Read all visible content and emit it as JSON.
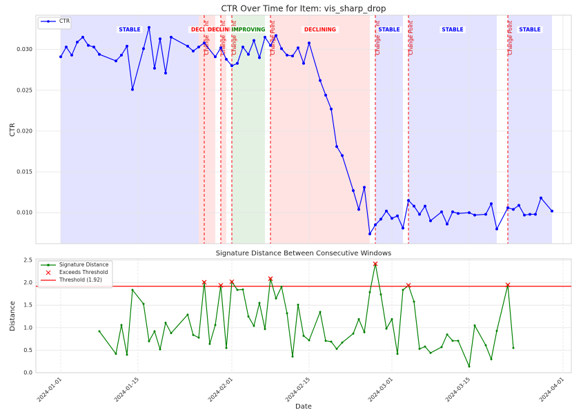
{
  "chart_data": [
    {
      "type": "line",
      "title": "CTR Over Time for Item: vis_sharp_drop",
      "ylabel": "CTR",
      "x": [
        "2024-01-01",
        "2024-01-02",
        "2024-01-03",
        "2024-01-04",
        "2024-01-05",
        "2024-01-06",
        "2024-01-07",
        "2024-01-08",
        "2024-01-11",
        "2024-01-12",
        "2024-01-13",
        "2024-01-14",
        "2024-01-16",
        "2024-01-17",
        "2024-01-18",
        "2024-01-19",
        "2024-01-20",
        "2024-01-21",
        "2024-01-24",
        "2024-01-25",
        "2024-01-26",
        "2024-01-27",
        "2024-01-29",
        "2024-01-30",
        "2024-01-31",
        "2024-02-01",
        "2024-02-02",
        "2024-02-03",
        "2024-02-04",
        "2024-02-05",
        "2024-02-06",
        "2024-02-07",
        "2024-02-08",
        "2024-02-09",
        "2024-02-10",
        "2024-02-11",
        "2024-02-12",
        "2024-02-13",
        "2024-02-14",
        "2024-02-15",
        "2024-02-17",
        "2024-02-18",
        "2024-02-19",
        "2024-02-20",
        "2024-02-21",
        "2024-02-23",
        "2024-02-24",
        "2024-02-25",
        "2024-02-26",
        "2024-02-27",
        "2024-02-28",
        "2024-02-29",
        "2024-03-01",
        "2024-03-02",
        "2024-03-03",
        "2024-03-04",
        "2024-03-05",
        "2024-03-06",
        "2024-03-07",
        "2024-03-08",
        "2024-03-10",
        "2024-03-11",
        "2024-03-12",
        "2024-03-13",
        "2024-03-15",
        "2024-03-16",
        "2024-03-18",
        "2024-03-19",
        "2024-03-20",
        "2024-03-22",
        "2024-03-23",
        "2024-03-24",
        "2024-03-25",
        "2024-03-26",
        "2024-03-27",
        "2024-03-28",
        "2024-03-30"
      ],
      "series": [
        {
          "name": "CTR",
          "color": "#0000ff",
          "values": [
            0.0291,
            0.0303,
            0.0293,
            0.0309,
            0.0315,
            0.0305,
            0.0303,
            0.0294,
            0.0286,
            0.0293,
            0.0304,
            0.0251,
            0.0301,
            0.0327,
            0.0277,
            0.0313,
            0.0271,
            0.0315,
            0.0304,
            0.0298,
            0.0303,
            0.0308,
            0.0291,
            0.0302,
            0.0288,
            0.028,
            0.0283,
            0.0303,
            0.0294,
            0.0311,
            0.029,
            0.0315,
            0.0305,
            0.0317,
            0.0301,
            0.0293,
            0.0292,
            0.0302,
            0.0283,
            0.0308,
            0.0262,
            0.0244,
            0.0227,
            0.0181,
            0.017,
            0.0127,
            0.0104,
            0.0131,
            0.0074,
            0.0085,
            0.0092,
            0.0102,
            0.0093,
            0.0096,
            0.0081,
            0.0115,
            0.0108,
            0.0098,
            0.0108,
            0.009,
            0.0101,
            0.0086,
            0.0101,
            0.0099,
            0.01,
            0.0097,
            0.0098,
            0.0111,
            0.008,
            0.0106,
            0.0104,
            0.0109,
            0.0097,
            0.0098,
            0.0098,
            0.0118,
            0.0102
          ]
        }
      ],
      "xlim": [
        "2023-12-27T12:00:00Z",
        "2024-04-02T12:00:00Z"
      ],
      "ylim": [
        0.0062,
        0.0342
      ],
      "yticks": [
        {
          "value": 0.01,
          "label": "0.010"
        },
        {
          "value": 0.015,
          "label": "0.015"
        },
        {
          "value": 0.02,
          "label": "0.020"
        },
        {
          "value": 0.025,
          "label": "0.025"
        },
        {
          "value": 0.03,
          "label": "0.030"
        }
      ],
      "grid": true,
      "legend": "upper left",
      "regions": [
        {
          "label": "STABLE",
          "start": "2024-01-01",
          "end": "2024-01-26",
          "color": "#0000ff"
        },
        {
          "label": "DECLINING",
          "start": "2024-01-26",
          "end": "2024-01-29",
          "color": "#ff0000"
        },
        {
          "label": "DECLINING",
          "start": "2024-01-30",
          "end": "2024-01-31",
          "color": "#ff0000"
        },
        {
          "label": "IMPROVING",
          "start": "2024-02-01",
          "end": "2024-02-07",
          "color": "#008000"
        },
        {
          "label": "DECLINING",
          "start": "2024-02-08",
          "end": "2024-02-26",
          "color": "#ff0000"
        },
        {
          "label": "STABLE",
          "start": "2024-02-27",
          "end": "2024-03-03",
          "color": "#0000ff"
        },
        {
          "label": "STABLE",
          "start": "2024-03-04",
          "end": "2024-03-20",
          "color": "#0000ff"
        },
        {
          "label": "STABLE",
          "start": "2024-03-22",
          "end": "2024-03-30",
          "color": "#0000ff"
        }
      ],
      "change_points": [
        "2024-01-27",
        "2024-01-30",
        "2024-02-01",
        "2024-02-08",
        "2024-02-27",
        "2024-03-04",
        "2024-03-22"
      ],
      "change_point_label": "Change Point"
    },
    {
      "type": "line",
      "title": "Signature Distance Between Consecutive Windows",
      "xlabel": "Date",
      "ylabel": "Distance",
      "x": [
        "2024-01-08",
        "2024-01-11",
        "2024-01-12",
        "2024-01-13",
        "2024-01-14",
        "2024-01-16",
        "2024-01-17",
        "2024-01-18",
        "2024-01-19",
        "2024-01-20",
        "2024-01-21",
        "2024-01-24",
        "2024-01-25",
        "2024-01-26",
        "2024-01-27",
        "2024-01-28",
        "2024-01-29",
        "2024-01-30",
        "2024-01-31",
        "2024-02-01",
        "2024-02-02",
        "2024-02-03",
        "2024-02-04",
        "2024-02-05",
        "2024-02-06",
        "2024-02-07",
        "2024-02-08",
        "2024-02-09",
        "2024-02-10",
        "2024-02-11",
        "2024-02-12",
        "2024-02-13",
        "2024-02-14",
        "2024-02-15",
        "2024-02-17",
        "2024-02-18",
        "2024-02-19",
        "2024-02-20",
        "2024-02-21",
        "2024-02-23",
        "2024-02-24",
        "2024-02-25",
        "2024-02-26",
        "2024-02-27",
        "2024-02-28",
        "2024-02-29",
        "2024-03-01",
        "2024-03-02",
        "2024-03-03",
        "2024-03-04",
        "2024-03-05",
        "2024-03-06",
        "2024-03-07",
        "2024-03-08",
        "2024-03-10",
        "2024-03-11",
        "2024-03-12",
        "2024-03-13",
        "2024-03-15",
        "2024-03-16",
        "2024-03-18",
        "2024-03-19",
        "2024-03-20",
        "2024-03-22",
        "2024-03-23"
      ],
      "series": [
        {
          "name": "Signature Distance",
          "color": "#008000",
          "values": [
            0.92,
            0.42,
            1.06,
            0.4,
            1.84,
            1.53,
            0.7,
            0.92,
            0.52,
            1.11,
            0.88,
            1.29,
            0.84,
            0.78,
            2.01,
            0.64,
            1.06,
            1.94,
            0.55,
            2.02,
            1.84,
            1.85,
            1.25,
            1.04,
            1.55,
            0.97,
            2.09,
            1.65,
            1.91,
            1.32,
            0.36,
            1.51,
            0.82,
            0.72,
            1.35,
            0.71,
            0.69,
            0.53,
            0.67,
            0.87,
            1.19,
            0.9,
            1.79,
            2.42,
            1.74,
            0.98,
            1.19,
            0.42,
            1.84,
            1.94,
            1.58,
            0.53,
            0.58,
            0.44,
            0.57,
            0.85,
            0.71,
            0.71,
            0.14,
            1.05,
            0.61,
            0.3,
            0.93,
            1.95,
            0.55
          ]
        }
      ],
      "exceed": {
        "name": "Exceeds Threshold",
        "color": "#ff0000"
      },
      "threshold": {
        "name": "Threshold (1.92)",
        "value": 1.92,
        "color": "#ff0000"
      },
      "xlim": [
        "2023-12-27T12:00:00Z",
        "2024-04-02T12:00:00Z"
      ],
      "xticks": [
        "2024-01-01",
        "2024-01-15",
        "2024-02-01",
        "2024-02-15",
        "2024-03-01",
        "2024-03-15",
        "2024-04-01"
      ],
      "ylim": [
        0,
        2.53
      ],
      "yticks": [
        {
          "value": 0,
          "label": "0.0"
        },
        {
          "value": 0.5,
          "label": "0.5"
        },
        {
          "value": 1,
          "label": "1.0"
        },
        {
          "value": 1.5,
          "label": "1.5"
        },
        {
          "value": 2,
          "label": "2.0"
        },
        {
          "value": 2.5,
          "label": "2.5"
        }
      ],
      "grid": true,
      "legend": "upper left"
    }
  ]
}
